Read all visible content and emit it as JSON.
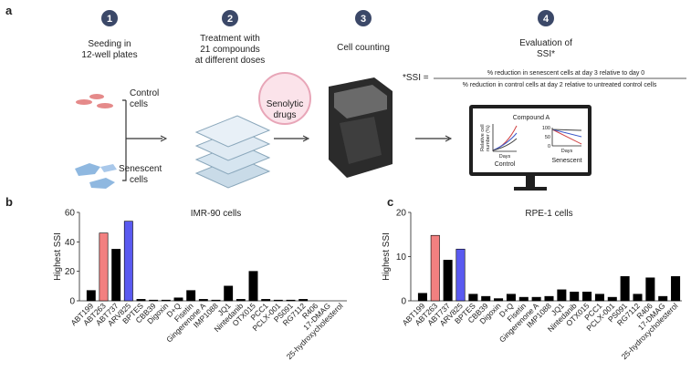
{
  "diagram": {
    "panel_label": "a",
    "steps": [
      {
        "number": "1",
        "label": [
          "Seeding in",
          "12-well plates"
        ]
      },
      {
        "number": "2",
        "label": [
          "Treatment with",
          "21 compounds",
          "at different doses"
        ]
      },
      {
        "number": "3",
        "label": [
          "Cell counting"
        ]
      },
      {
        "number": "4",
        "label": [
          "Evaluation of",
          "SSI*"
        ]
      }
    ],
    "control_label": [
      "Control",
      "cells"
    ],
    "senescent_label": [
      "Senescent",
      "cells"
    ],
    "drug_label": [
      "Senolytic",
      "drugs"
    ],
    "ssi": {
      "lhs": "*SSI =",
      "numerator": "% reduction in senescent cells at day 3 relative to day 0",
      "denominator": "% reduction in control cells at day 2 relative to untreated control cells"
    },
    "monitor": {
      "title": "Compound A",
      "ylabel": [
        "Relative cell",
        "number (%)"
      ],
      "xlabel": "Days",
      "left": "Control",
      "right": "Senescent",
      "ticks": [
        "100",
        "50",
        "0"
      ]
    }
  },
  "chart_data": [
    {
      "type": "bar",
      "panel_label": "b",
      "title": "IMR-90 cells",
      "ylabel": "Highest SSI",
      "categories": [
        "ABT199",
        "ABT263",
        "ABT737",
        "ARV825",
        "BPTES",
        "CBB39",
        "Digoxin",
        "D+Q",
        "Fisetin",
        "Gingerenone A",
        "IMP1088",
        "JQ1",
        "Nintedanib",
        "OTX015",
        "PCC1",
        "PCLX-001",
        "PS091",
        "RG7112",
        "R406",
        "17-DMAG",
        "25-hydroxycholesterol"
      ],
      "values": [
        7,
        46,
        35,
        54,
        1,
        0.5,
        0.5,
        2,
        7,
        1,
        0.5,
        10,
        1,
        20,
        1,
        0.5,
        0.5,
        1,
        0,
        0,
        0
      ],
      "colors": [
        "#000000",
        "#f28080",
        "#000000",
        "#5a5af0",
        "#000000",
        "#000000",
        "#000000",
        "#000000",
        "#000000",
        "#000000",
        "#000000",
        "#000000",
        "#000000",
        "#000000",
        "#000000",
        "#000000",
        "#000000",
        "#000000",
        "#000000",
        "#000000",
        "#000000"
      ],
      "ylim": [
        0,
        60
      ],
      "yticks": [
        0,
        20,
        40,
        60
      ]
    },
    {
      "type": "bar",
      "panel_label": "c",
      "title": "RPE-1 cells",
      "ylabel": "Highest SSI",
      "categories": [
        "ABT199",
        "ABT263",
        "ABT737",
        "ARV825",
        "BPTES",
        "CBB39",
        "Digoxin",
        "D+Q",
        "Fisetin",
        "Gingerenone A",
        "IMP1088",
        "JQ1",
        "Nintedanib",
        "OTX015",
        "PCC1",
        "PCLX-001",
        "PS091",
        "RG7112",
        "R406",
        "17-DMAG",
        "25-hydroxycholesterol"
      ],
      "values": [
        1.7,
        14.8,
        9.2,
        11.7,
        1.5,
        1,
        0.5,
        1.5,
        0.8,
        0.8,
        1,
        2.5,
        2,
        2,
        1.5,
        0.8,
        5.5,
        1.5,
        5.2,
        1,
        5.5
      ],
      "colors": [
        "#000000",
        "#f28080",
        "#000000",
        "#5a5af0",
        "#000000",
        "#000000",
        "#000000",
        "#000000",
        "#000000",
        "#000000",
        "#000000",
        "#000000",
        "#000000",
        "#000000",
        "#000000",
        "#000000",
        "#000000",
        "#000000",
        "#000000",
        "#000000",
        "#000000"
      ],
      "ylim": [
        0,
        20
      ],
      "yticks": [
        0,
        10,
        20
      ]
    }
  ]
}
